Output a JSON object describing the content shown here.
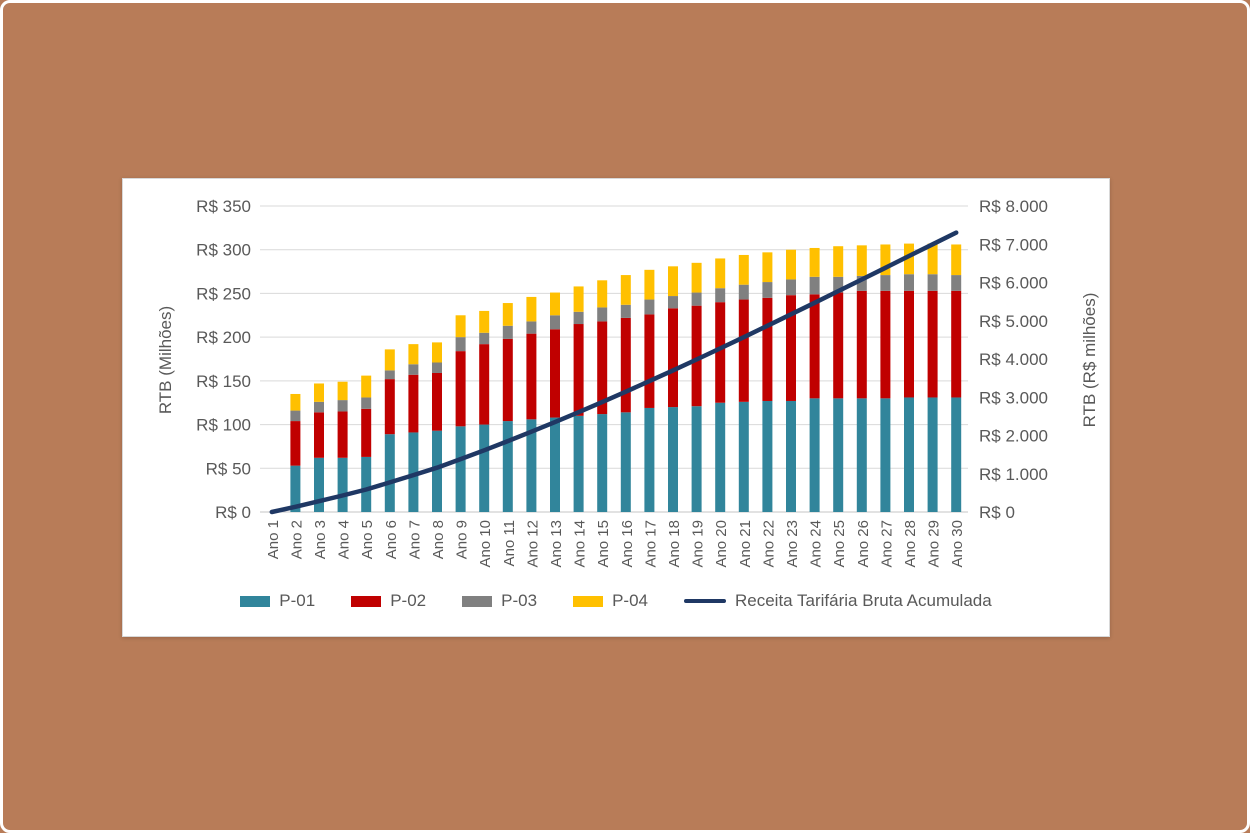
{
  "page": {
    "background_color": "#b87c58",
    "panel_background": "#ffffff",
    "gridline_color": "#d9d9d9",
    "tick_text_color": "#595959"
  },
  "chart_data": {
    "type": "bar",
    "stacked": true,
    "grid": true,
    "legend_position": "bottom",
    "categories": [
      "Ano 1",
      "Ano 2",
      "Ano 3",
      "Ano 4",
      "Ano 5",
      "Ano 6",
      "Ano 7",
      "Ano 8",
      "Ano 9",
      "Ano 10",
      "Ano 11",
      "Ano 12",
      "Ano 13",
      "Ano 14",
      "Ano 15",
      "Ano 16",
      "Ano 17",
      "Ano 18",
      "Ano 19",
      "Ano 20",
      "Ano 21",
      "Ano 22",
      "Ano 23",
      "Ano 24",
      "Ano 25",
      "Ano 26",
      "Ano 27",
      "Ano 28",
      "Ano 29",
      "Ano 30"
    ],
    "series": [
      {
        "name": "P-01",
        "color": "#31859b",
        "values": [
          0,
          53,
          62,
          62,
          63,
          89,
          91,
          93,
          98,
          100,
          104,
          106,
          108,
          110,
          112,
          114,
          119,
          120,
          121,
          125,
          126,
          127,
          127,
          130,
          130,
          130,
          130,
          131,
          131,
          131
        ]
      },
      {
        "name": "P-02",
        "color": "#c00000",
        "values": [
          0,
          51,
          52,
          53,
          55,
          63,
          66,
          66,
          86,
          92,
          94,
          98,
          101,
          105,
          106,
          108,
          107,
          113,
          115,
          115,
          117,
          118,
          121,
          119,
          121,
          123,
          123,
          122,
          122,
          122
        ]
      },
      {
        "name": "P-03",
        "color": "#808080",
        "values": [
          0,
          12,
          12,
          13,
          13,
          10,
          12,
          12,
          16,
          13,
          15,
          14,
          16,
          14,
          16,
          15,
          17,
          14,
          15,
          16,
          17,
          18,
          18,
          20,
          18,
          17,
          18,
          19,
          19,
          18
        ]
      },
      {
        "name": "P-04",
        "color": "#ffc000",
        "values": [
          0,
          19,
          21,
          21,
          25,
          24,
          23,
          23,
          25,
          25,
          26,
          28,
          26,
          29,
          31,
          34,
          34,
          34,
          34,
          34,
          34,
          34,
          34,
          33,
          35,
          35,
          35,
          35,
          35,
          35
        ]
      }
    ],
    "line_series": {
      "name": "Receita Tarifária Bruta Acumulada",
      "color": "#1f3864",
      "axis": "right",
      "values": [
        0,
        135,
        282,
        431,
        587,
        773,
        965,
        1159,
        1384,
        1614,
        1853,
        2099,
        2350,
        2608,
        2873,
        3144,
        3421,
        3702,
        3987,
        4277,
        4571,
        4868,
        5168,
        5470,
        5774,
        6079,
        6385,
        6692,
        6999,
        7305
      ]
    },
    "left_axis": {
      "title": "RTB (Milhões)",
      "min": 0,
      "max": 350,
      "step": 50,
      "tick_labels": [
        "R$ 0",
        "R$ 50",
        "R$ 100",
        "R$ 150",
        "R$ 200",
        "R$ 250",
        "R$ 300",
        "R$ 350"
      ]
    },
    "right_axis": {
      "title": "RTB (R$ milhões)",
      "min": 0,
      "max": 8000,
      "step": 1000,
      "tick_labels": [
        "R$ 0",
        "R$ 1.000",
        "R$ 2.000",
        "R$ 3.000",
        "R$ 4.000",
        "R$ 5.000",
        "R$ 6.000",
        "R$ 7.000",
        "R$ 8.000"
      ]
    }
  }
}
